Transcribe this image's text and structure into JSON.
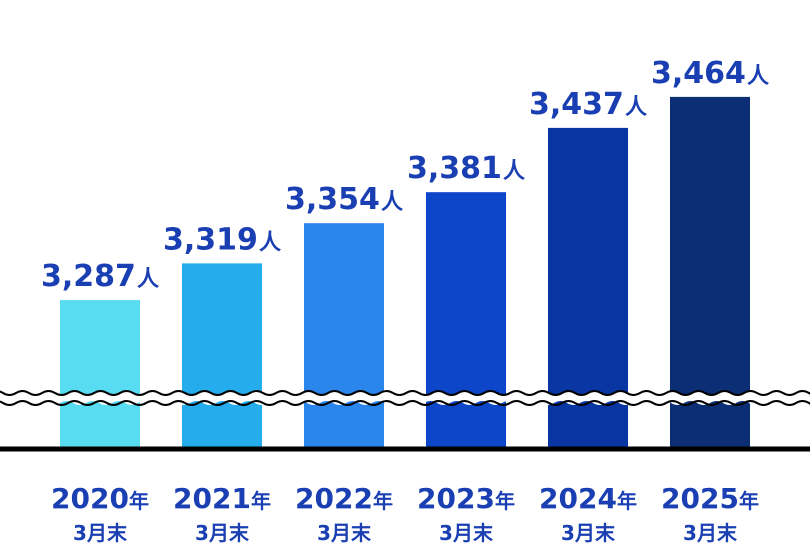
{
  "chart_data": {
    "type": "bar",
    "categories": [
      {
        "year": "2020",
        "year_suffix": "年",
        "sub": "3月末"
      },
      {
        "year": "2021",
        "year_suffix": "年",
        "sub": "3月末"
      },
      {
        "year": "2022",
        "year_suffix": "年",
        "sub": "3月末"
      },
      {
        "year": "2023",
        "year_suffix": "年",
        "sub": "3月末"
      },
      {
        "year": "2024",
        "year_suffix": "年",
        "sub": "3月末"
      },
      {
        "year": "2025",
        "year_suffix": "年",
        "sub": "3月末"
      }
    ],
    "values": [
      3287,
      3319,
      3354,
      3381,
      3437,
      3464
    ],
    "value_labels": [
      "3,287",
      "3,319",
      "3,354",
      "3,381",
      "3,437",
      "3,464"
    ],
    "unit": "人",
    "axis_break": true,
    "ylim_visible": [
      3200,
      3470
    ],
    "title": "",
    "xlabel": "",
    "ylabel": "",
    "bar_colors": [
      "#57dcf1",
      "#24acec",
      "#2b86ec",
      "#0d46c9",
      "#0a36a3",
      "#0b2e74"
    ],
    "label_color": "#1a3fb3",
    "axis_color": "#000000"
  }
}
